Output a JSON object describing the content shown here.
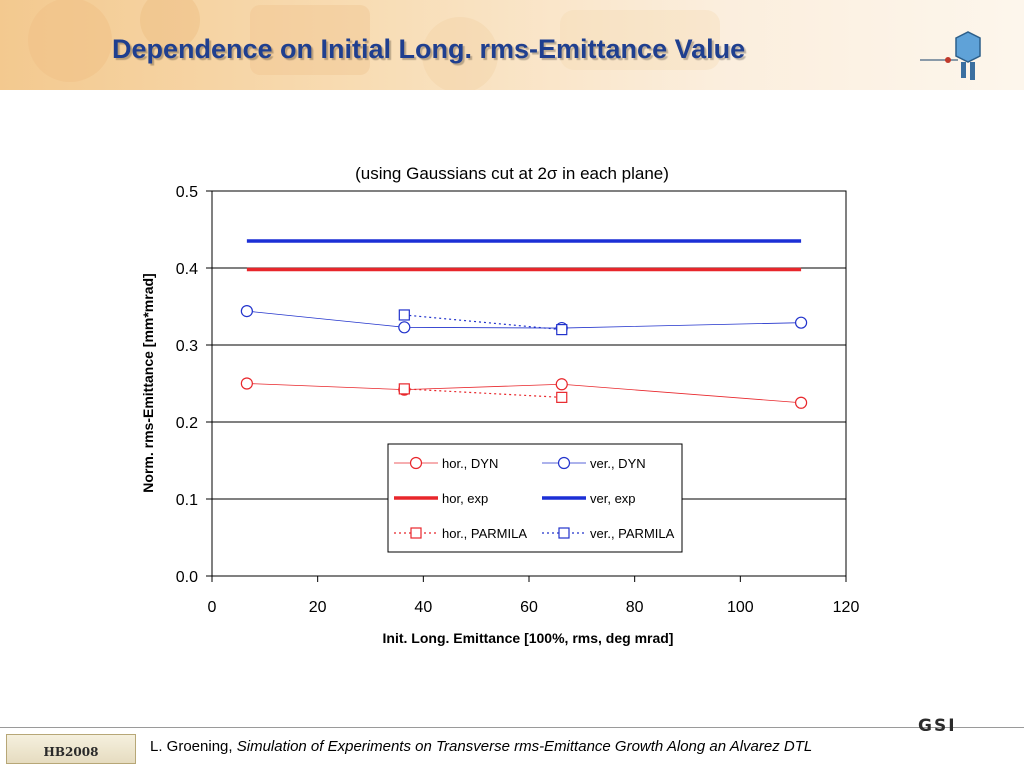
{
  "slide": {
    "title": "Dependence on Initial Long. rms-Emittance Value",
    "footer_author": "L. Groening",
    "footer_sep": ",",
    "footer_talk": "Simulation of Experiments on Transverse rms-Emittance Growth Along an Alvarez DTL",
    "hb_logo_text": "HB2008",
    "gsi_logo_text": "GSI"
  },
  "chart_data": {
    "type": "line",
    "subtitle": "(using Gaussians cut at 2σ in each plane)",
    "xlabel": "Init. Long. Emittance  [100%, rms, deg mrad]",
    "ylabel": "Norm. rms-Emittance [mm*mrad]",
    "xlim": [
      0,
      120
    ],
    "ylim": [
      0,
      0.5
    ],
    "x_ticks": [
      "0",
      "20",
      "40",
      "60",
      "80",
      "100",
      "120"
    ],
    "y_ticks": [
      "0.0",
      "0.1",
      "0.2",
      "0.3",
      "0.4",
      "0.5"
    ],
    "grid": "horizontal",
    "legend_position": "bottom-center",
    "series": [
      {
        "name": "hor., DYN",
        "color": "#e8262b",
        "style": "thin",
        "marker": "circle",
        "x": [
          6.6,
          36.4,
          66.2,
          111.5
        ],
        "y": [
          0.25,
          0.242,
          0.249,
          0.225
        ]
      },
      {
        "name": "ver., DYN",
        "color": "#2233cc",
        "style": "thin",
        "marker": "circle",
        "x": [
          6.6,
          36.4,
          66.2,
          111.5
        ],
        "y": [
          0.344,
          0.323,
          0.322,
          0.329
        ]
      },
      {
        "name": "hor, exp",
        "color": "#e8262b",
        "style": "thick",
        "marker": "none",
        "x": [
          6.6,
          111.5
        ],
        "y": [
          0.398,
          0.398
        ]
      },
      {
        "name": "ver, exp",
        "color": "#1b2fd6",
        "style": "thick",
        "marker": "none",
        "x": [
          6.6,
          111.5
        ],
        "y": [
          0.435,
          0.435
        ]
      },
      {
        "name": "hor., PARMILA",
        "color": "#e8262b",
        "style": "dotted",
        "marker": "square",
        "x": [
          36.4,
          66.2
        ],
        "y": [
          0.243,
          0.232
        ]
      },
      {
        "name": "ver., PARMILA",
        "color": "#2233cc",
        "style": "dotted",
        "marker": "square",
        "x": [
          36.4,
          66.2
        ],
        "y": [
          0.339,
          0.32
        ]
      }
    ]
  }
}
